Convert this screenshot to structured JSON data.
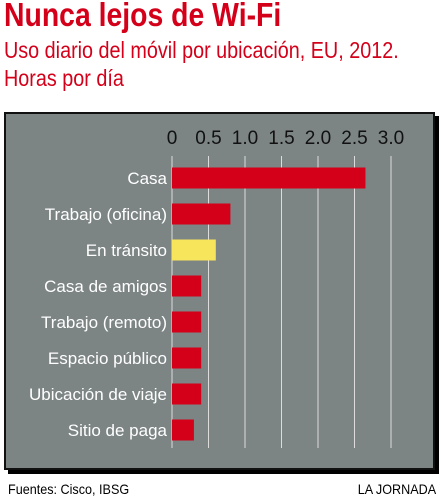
{
  "header": {
    "title": "Nunca lejos de Wi-Fi",
    "subtitle": "Uso diario del móvil por ubicación, EU, 2012. Horas por día"
  },
  "footer": {
    "source": "Fuentes: Cisco, IBSG",
    "credit": "LA JORNADA"
  },
  "colors": {
    "title": "#d4001a",
    "panel": "#7c8484",
    "bar": "#d4001a",
    "bar_highlight": "#f7e55b",
    "grid": "#dcdcdc"
  },
  "chart_data": {
    "type": "bar",
    "orientation": "horizontal",
    "title": "Nunca lejos de Wi-Fi",
    "subtitle": "Uso diario del móvil por ubicación, EU, 2012. Horas por día",
    "xlabel": "",
    "ylabel": "",
    "xlim": [
      0,
      3.0
    ],
    "ticks": [
      0,
      0.5,
      1.0,
      1.5,
      2.0,
      2.5,
      3.0
    ],
    "tick_labels": [
      "0",
      "0.5",
      "1.0",
      "1.5",
      "2.0",
      "2.5",
      "3.0"
    ],
    "grid": true,
    "categories": [
      "Casa",
      "Trabajo (oficina)",
      "En tránsito",
      "Casa de amigos",
      "Trabajo (remoto)",
      "Espacio público",
      "Ubicación de viaje",
      "Sitio de paga"
    ],
    "values": [
      2.65,
      0.8,
      0.6,
      0.4,
      0.4,
      0.4,
      0.4,
      0.3
    ],
    "highlight": "En tránsito"
  }
}
